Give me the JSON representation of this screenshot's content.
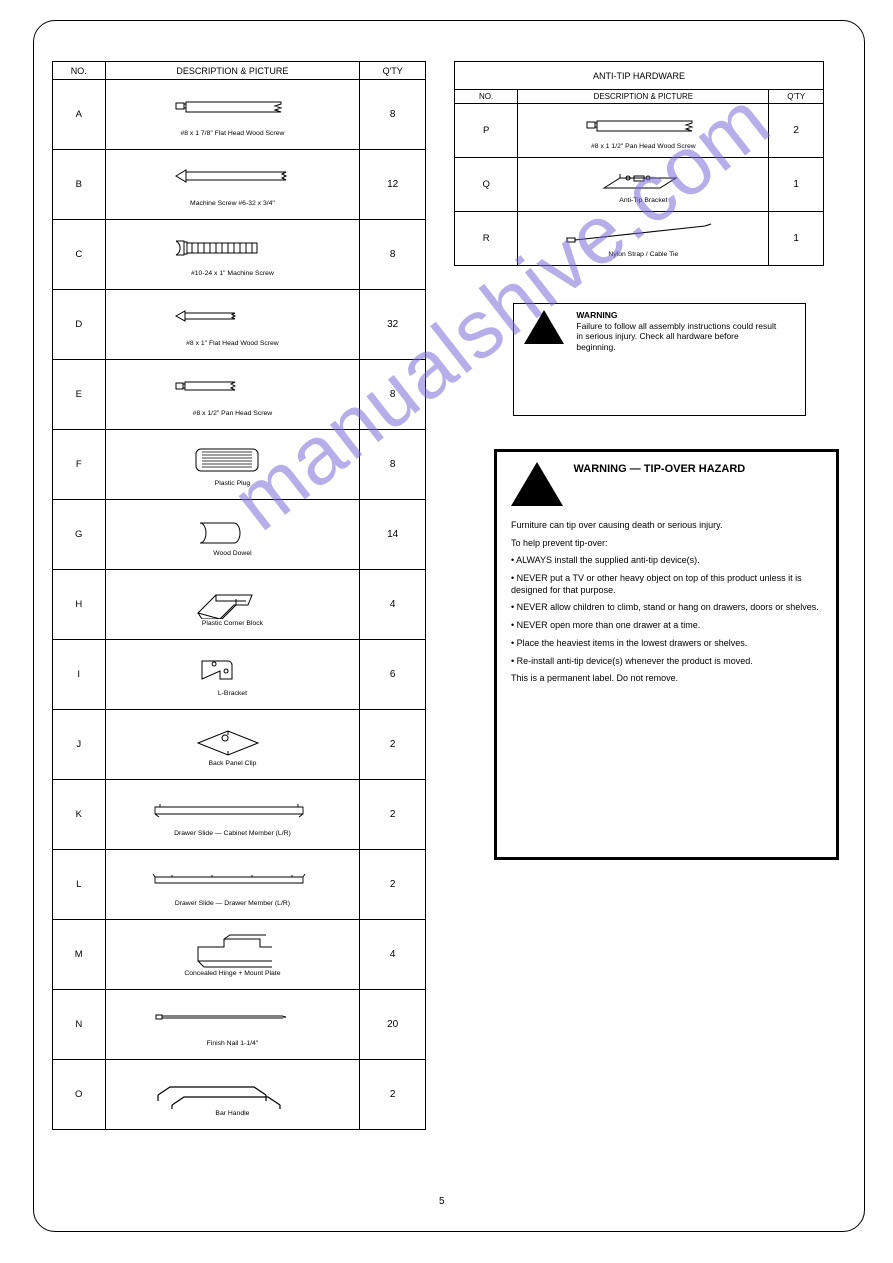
{
  "page": {
    "number": "5"
  },
  "watermark": "manualshive.com",
  "colors": {
    "line": "#000000",
    "bg": "#ffffff",
    "watermark": "#7a6cd8"
  },
  "mainTable": {
    "headers": [
      "NO.",
      "DESCRIPTION & PICTURE",
      "Q'TY"
    ],
    "rows": [
      {
        "id": "A",
        "label": "#8 x 1 7/8\" Flat Head Wood Screw",
        "qty": "8",
        "icon": "screw-pan-long"
      },
      {
        "id": "B",
        "label": "Machine Screw #6-32 x 3/4\"",
        "qty": "12",
        "icon": "screw-countersunk-long"
      },
      {
        "id": "C",
        "label": "#10-24 x 1\" Machine Screw",
        "qty": "8",
        "icon": "machine-screw"
      },
      {
        "id": "D",
        "label": "#8 x 1\" Flat Head Wood Screw",
        "qty": "32",
        "icon": "screw-countersunk-short"
      },
      {
        "id": "E",
        "label": "#8 x 1/2\" Pan Head Screw",
        "qty": "8",
        "icon": "screw-pan-short"
      },
      {
        "id": "F",
        "label": "Plastic Plug",
        "qty": "8",
        "icon": "plug-slot"
      },
      {
        "id": "G",
        "label": "Wood Dowel",
        "qty": "14",
        "icon": "dowel"
      },
      {
        "id": "H",
        "label": "Plastic Corner Block",
        "qty": "4",
        "icon": "corner-block"
      },
      {
        "id": "I",
        "label": "L-Bracket",
        "qty": "6",
        "icon": "l-bracket"
      },
      {
        "id": "J",
        "label": "Back Panel Clip",
        "qty": "2",
        "icon": "panel-clip"
      },
      {
        "id": "K",
        "label": "Drawer Slide — Cabinet Member (L/R)",
        "qty": "2",
        "icon": "slide-1"
      },
      {
        "id": "L",
        "label": "Drawer Slide — Drawer Member (L/R)",
        "qty": "2",
        "icon": "slide-2"
      },
      {
        "id": "M",
        "label": "Concealed Hinge + Mount Plate",
        "qty": "4",
        "icon": "hinge"
      },
      {
        "id": "N",
        "label": "Finish Nail 1-1/4\"",
        "qty": "20",
        "icon": "nail"
      },
      {
        "id": "O",
        "label": "Bar Handle",
        "qty": "2",
        "icon": "handles"
      }
    ]
  },
  "rightTable": {
    "title": "ANTI-TIP HARDWARE",
    "headers": [
      "NO.",
      "DESCRIPTION & PICTURE",
      "Q'TY"
    ],
    "rows": [
      {
        "id": "P",
        "label": "#8 x 1 1/2\" Pan Head Wood Screw",
        "qty": "2",
        "icon": "screw-pan-long"
      },
      {
        "id": "Q",
        "label": "Anti-Tip Bracket",
        "qty": "1",
        "icon": "anti-tip-bracket"
      },
      {
        "id": "R",
        "label": "Nylon Strap / Cable Tie",
        "qty": "1",
        "icon": "cable-tie"
      }
    ]
  },
  "warning1": {
    "title": "WARNING",
    "text": "Failure to follow all assembly instructions could result in serious injury. Check all hardware before beginning."
  },
  "warning2": {
    "title": "WARNING — TIP-OVER HAZARD",
    "lines": [
      "Furniture can tip over causing death or serious injury.",
      "To help prevent tip-over:",
      "• ALWAYS install the supplied anti-tip device(s).",
      "• NEVER put a TV or other heavy object on top of this product unless it is designed for that purpose.",
      "• NEVER allow children to climb, stand or hang on drawers, doors or shelves.",
      "• NEVER open more than one drawer at a time.",
      "• Place the heaviest items in the lowest drawers or shelves.",
      "• Re-install anti-tip device(s) whenever the product is moved.",
      "This is a permanent label. Do not remove."
    ]
  }
}
